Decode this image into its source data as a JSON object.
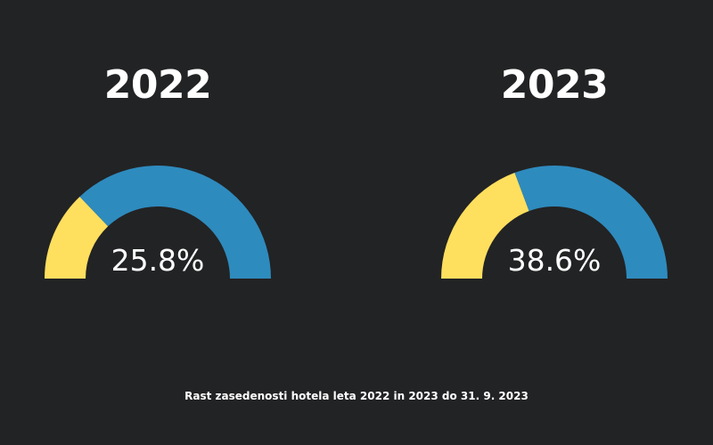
{
  "chart_data": {
    "type": "gauge",
    "caption": "Rast zasedenosti hotela leta 2022 in 2023 do 31. 9. 2023",
    "colors": {
      "background": "#222324",
      "filled": "#FFDF5E",
      "remaining": "#2E8BBE",
      "text": "#FFFFFF"
    },
    "range": [
      0,
      100
    ],
    "gauges": [
      {
        "title": "2022",
        "value": 25.8,
        "label": "25.8%"
      },
      {
        "title": "2023",
        "value": 38.6,
        "label": "38.6%"
      }
    ]
  }
}
